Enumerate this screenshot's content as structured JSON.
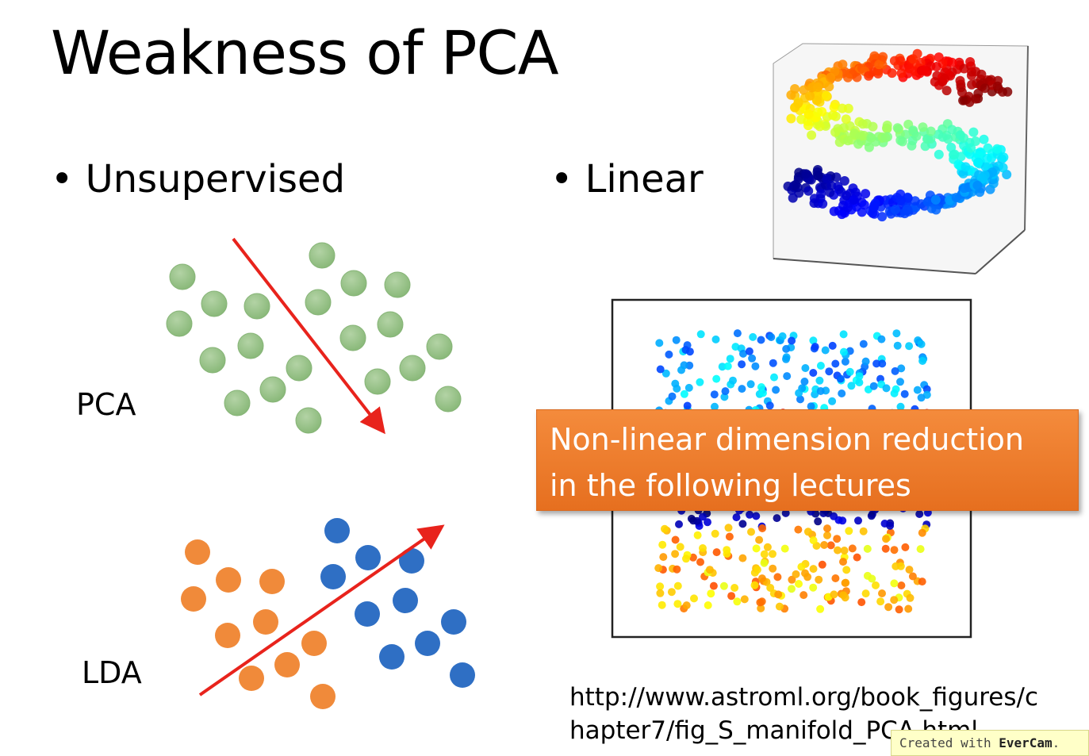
{
  "slide": {
    "title": "Weakness of PCA",
    "bullet_1": "Unsupervised",
    "bullet_2": "Linear",
    "pca_label": "PCA",
    "lda_label": "LDA",
    "callout_line_1": "Non-linear dimension reduction",
    "callout_line_2": "in the following lectures",
    "url_line_1": "http://www.astroml.org/book_figures/c",
    "url_line_2": "hapter7/fig_S_manifold_PCA.html",
    "watermark_prefix": "Created with",
    "watermark_brand": "EverCam"
  },
  "colors": {
    "pca_point": "#9bc48b",
    "lda_class_a": "#f08a3a",
    "lda_class_b": "#2f6fc4",
    "arrow": "#e8231c",
    "callout_bg": "#ee7b2c"
  }
}
